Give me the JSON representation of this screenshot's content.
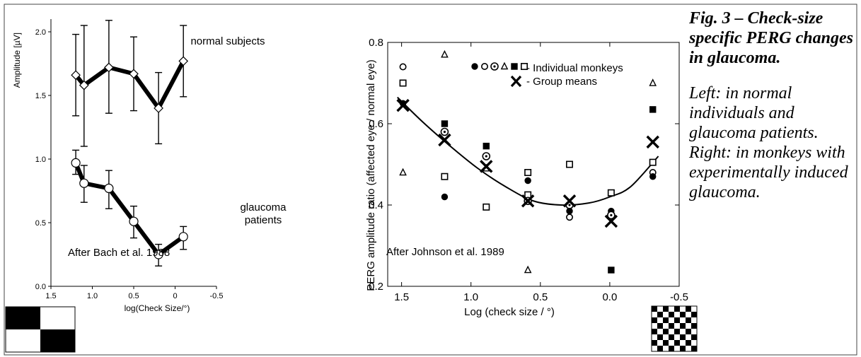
{
  "chart_data": [
    {
      "type": "line",
      "xlabel": "log(Check Size/°)",
      "ylabel": "Amplitude [µV]",
      "xlim": [
        1.5,
        -0.5
      ],
      "ylim": [
        0.0,
        2.1
      ],
      "x_ticks": [
        1.5,
        1.0,
        0.5,
        0.0,
        -0.5
      ],
      "x_tick_labels": [
        "1.5",
        "1.0",
        "0.5",
        "0",
        "-0.5"
      ],
      "y_ticks": [
        0.0,
        0.5,
        1.0,
        1.5,
        2.0
      ],
      "y_tick_labels": [
        "0.0",
        "0.5",
        "1.0",
        "1.5",
        "2.0"
      ],
      "annotation": "After Bach et al. 1988",
      "series": [
        {
          "name": "normal subjects",
          "marker": "diamond",
          "x": [
            1.2,
            1.1,
            0.8,
            0.5,
            0.2,
            -0.1
          ],
          "y": [
            1.66,
            1.58,
            1.72,
            1.67,
            1.4,
            1.77
          ],
          "err_low": [
            1.34,
            1.1,
            1.36,
            1.38,
            1.12,
            1.49
          ],
          "err_high": [
            1.98,
            2.05,
            2.09,
            1.96,
            1.68,
            2.05
          ]
        },
        {
          "name": "glaucoma patients",
          "marker": "circle",
          "x": [
            1.2,
            1.1,
            0.8,
            0.5,
            0.2,
            -0.1
          ],
          "y": [
            0.97,
            0.81,
            0.77,
            0.51,
            0.25,
            0.39
          ],
          "err_low": [
            0.88,
            0.66,
            0.61,
            0.38,
            0.16,
            0.29
          ],
          "err_high": [
            1.07,
            0.95,
            0.91,
            0.63,
            0.33,
            0.47
          ]
        }
      ]
    },
    {
      "type": "scatter",
      "xlabel": "Log (check size / °)",
      "ylabel": "PERG amplitude ratio (affected eye / normal eye)",
      "xlim": [
        1.6,
        -0.5
      ],
      "ylim": [
        0.2,
        0.8
      ],
      "x_ticks": [
        1.5,
        1.0,
        0.5,
        0.0,
        -0.5
      ],
      "x_tick_labels": [
        "1.5",
        "1.0",
        "0.5",
        "0.0",
        "-0.5"
      ],
      "y_ticks": [
        0.2,
        0.4,
        0.6,
        0.8
      ],
      "y_tick_labels": [
        "0.2",
        "0.4",
        "0.6",
        "0.8"
      ],
      "legend": {
        "individual": "- Individual monkeys",
        "means": "- Group means",
        "placement": "top-right"
      },
      "annotation": "After Johnson et al. 1989",
      "individual_points": [
        {
          "x": 1.49,
          "y": 0.74,
          "m": "circle-open"
        },
        {
          "x": 1.49,
          "y": 0.7,
          "m": "square-open"
        },
        {
          "x": 1.49,
          "y": 0.65,
          "m": "circle-filled"
        },
        {
          "x": 1.49,
          "y": 0.48,
          "m": "triangle-open"
        },
        {
          "x": 1.19,
          "y": 0.77,
          "m": "triangle-open"
        },
        {
          "x": 1.19,
          "y": 0.6,
          "m": "square-filled"
        },
        {
          "x": 1.19,
          "y": 0.58,
          "m": "circle-dot"
        },
        {
          "x": 1.19,
          "y": 0.47,
          "m": "square-open"
        },
        {
          "x": 1.19,
          "y": 0.42,
          "m": "circle-filled"
        },
        {
          "x": 0.89,
          "y": 0.545,
          "m": "square-filled"
        },
        {
          "x": 0.89,
          "y": 0.52,
          "m": "circle-dot"
        },
        {
          "x": 0.89,
          "y": 0.49,
          "m": "triangle-open"
        },
        {
          "x": 0.89,
          "y": 0.395,
          "m": "square-open"
        },
        {
          "x": 0.59,
          "y": 0.48,
          "m": "square-open"
        },
        {
          "x": 0.59,
          "y": 0.46,
          "m": "circle-filled"
        },
        {
          "x": 0.59,
          "y": 0.425,
          "m": "square-open"
        },
        {
          "x": 0.59,
          "y": 0.41,
          "m": "circle-dot"
        },
        {
          "x": 0.59,
          "y": 0.24,
          "m": "triangle-open"
        },
        {
          "x": 0.29,
          "y": 0.5,
          "m": "square-open"
        },
        {
          "x": 0.29,
          "y": 0.4,
          "m": "circle-dot"
        },
        {
          "x": 0.29,
          "y": 0.385,
          "m": "circle-filled"
        },
        {
          "x": 0.29,
          "y": 0.37,
          "m": "circle-open"
        },
        {
          "x": -0.01,
          "y": 0.43,
          "m": "square-open"
        },
        {
          "x": -0.01,
          "y": 0.385,
          "m": "circle-filled"
        },
        {
          "x": -0.01,
          "y": 0.375,
          "m": "circle-dot"
        },
        {
          "x": -0.01,
          "y": 0.24,
          "m": "square-filled"
        },
        {
          "x": -0.31,
          "y": 0.7,
          "m": "triangle-open"
        },
        {
          "x": -0.31,
          "y": 0.635,
          "m": "square-filled"
        },
        {
          "x": -0.31,
          "y": 0.505,
          "m": "square-open"
        },
        {
          "x": -0.31,
          "y": 0.48,
          "m": "circle-open"
        },
        {
          "x": -0.31,
          "y": 0.47,
          "m": "circle-filled"
        }
      ],
      "group_means": {
        "x": [
          1.49,
          1.19,
          0.89,
          0.59,
          0.29,
          -0.01,
          -0.31
        ],
        "y": [
          0.645,
          0.56,
          0.495,
          0.41,
          0.41,
          0.36,
          0.555
        ]
      },
      "fit_curve": {
        "x": [
          1.53,
          1.35,
          1.15,
          0.95,
          0.75,
          0.55,
          0.35,
          0.15,
          0.0,
          -0.15,
          -0.35
        ],
        "y": [
          0.665,
          0.605,
          0.545,
          0.49,
          0.445,
          0.41,
          0.4,
          0.405,
          0.42,
          0.445,
          0.52
        ]
      }
    }
  ],
  "caption": {
    "title": "Fig. 3 – Check-size specific PERG changes in glaucoma.",
    "text": "Left: in normal individuals and glaucoma patients. Right: in monkeys with experimentally induced glaucoma."
  }
}
